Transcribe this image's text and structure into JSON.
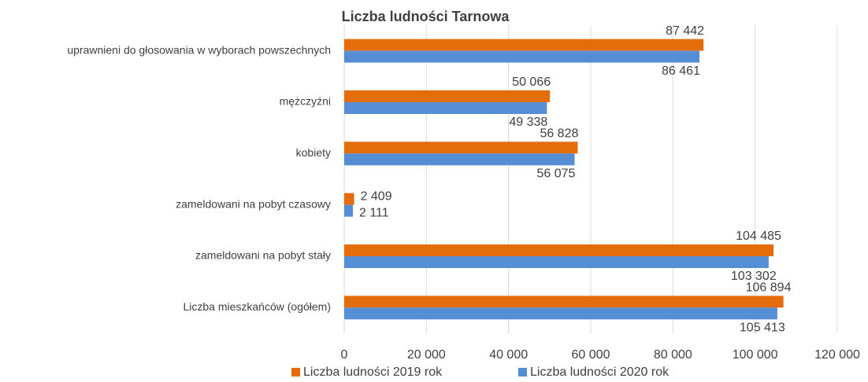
{
  "chart_data": {
    "type": "bar",
    "orientation": "horizontal",
    "title": "Liczba ludności Tarnowa",
    "categories": [
      "uprawnieni do głosowania w wyborach powszechnych",
      "mężczyźni",
      "kobiety",
      "zameldowani na pobyt czasowy",
      "zameldowani na pobyt stały",
      "Liczba mieszkańców (ogółem)"
    ],
    "series": [
      {
        "name": "Liczba ludności 2019 rok",
        "color": "#e46c0a",
        "values": [
          87442,
          50066,
          56828,
          2409,
          104485,
          106894
        ],
        "value_labels": [
          "87 442",
          "50 066",
          "56 828",
          "2 409",
          "104 485",
          "106 894"
        ]
      },
      {
        "name": "Liczba ludności 2020 rok",
        "color": "#558ed5",
        "values": [
          86461,
          49338,
          56075,
          2111,
          103302,
          105413
        ],
        "value_labels": [
          "86 461",
          "49 338",
          "56 075",
          "2 111",
          "103 302",
          "105 413"
        ]
      }
    ],
    "xlim": [
      0,
      120000
    ],
    "xticks": [
      0,
      {
        "value": 20000,
        "label": "20 000"
      },
      {
        "value": 40000,
        "label": "40 000"
      },
      {
        "value": 60000,
        "label": "60 000"
      },
      {
        "value": 80000,
        "label": "80 000"
      },
      {
        "value": 100000,
        "label": "100 000"
      },
      {
        "value": 120000,
        "label": "120 000"
      }
    ],
    "grid": true,
    "legend": "bottom"
  }
}
